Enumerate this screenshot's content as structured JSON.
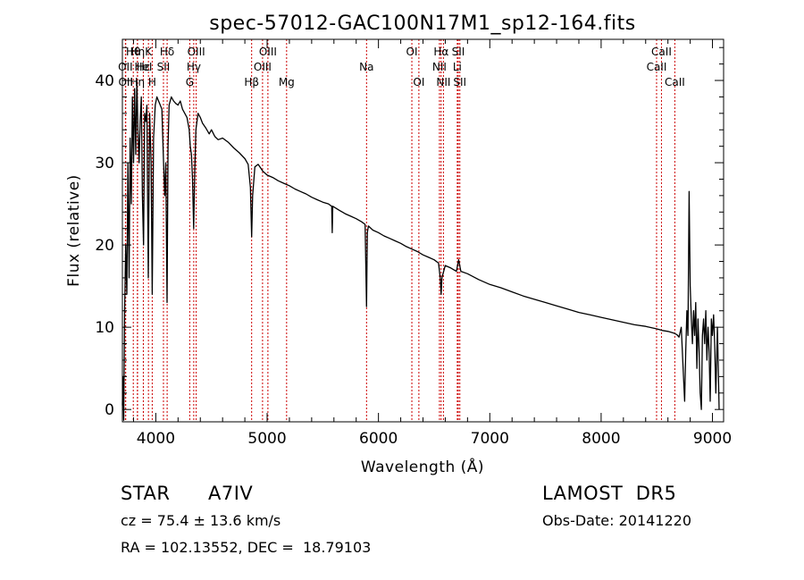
{
  "chart_data": {
    "type": "line",
    "title": "spec-57012-GAC100N17M1_sp12-164.fits",
    "xlabel": "Wavelength (Å)",
    "ylabel": "Flux (relative)",
    "xlim": [
      3700,
      9100
    ],
    "ylim": [
      -1.5,
      45
    ],
    "xticks": [
      4000,
      5000,
      6000,
      7000,
      8000,
      9000
    ],
    "yticks": [
      0,
      10,
      20,
      30,
      40
    ],
    "grid": false,
    "series": [
      {
        "points": [
          [
            3700,
            0.5
          ],
          [
            3705,
            4
          ],
          [
            3712,
            -1.3
          ],
          [
            3720,
            12
          ],
          [
            3730,
            20
          ],
          [
            3740,
            14
          ],
          [
            3750,
            30
          ],
          [
            3760,
            16
          ],
          [
            3770,
            33
          ],
          [
            3780,
            25
          ],
          [
            3790,
            38
          ],
          [
            3800,
            30
          ],
          [
            3810,
            39
          ],
          [
            3820,
            31
          ],
          [
            3830,
            40
          ],
          [
            3840,
            34
          ],
          [
            3850,
            30
          ],
          [
            3860,
            35
          ],
          [
            3870,
            38
          ],
          [
            3880,
            26
          ],
          [
            3890,
            20
          ],
          [
            3900,
            36
          ],
          [
            3910,
            35
          ],
          [
            3920,
            37
          ],
          [
            3933,
            16
          ],
          [
            3945,
            36
          ],
          [
            3958,
            30
          ],
          [
            3968,
            14
          ],
          [
            3980,
            33
          ],
          [
            3995,
            37
          ],
          [
            4010,
            38
          ],
          [
            4025,
            37.5
          ],
          [
            4040,
            37
          ],
          [
            4055,
            36.5
          ],
          [
            4070,
            30
          ],
          [
            4080,
            26
          ],
          [
            4090,
            30
          ],
          [
            4101,
            13
          ],
          [
            4110,
            32
          ],
          [
            4120,
            37
          ],
          [
            4140,
            38
          ],
          [
            4160,
            37.5
          ],
          [
            4180,
            37.2
          ],
          [
            4200,
            37
          ],
          [
            4220,
            37.5
          ],
          [
            4240,
            36.5
          ],
          [
            4260,
            36
          ],
          [
            4280,
            35.5
          ],
          [
            4300,
            34
          ],
          [
            4310,
            32
          ],
          [
            4320,
            31
          ],
          [
            4330,
            28
          ],
          [
            4340,
            22
          ],
          [
            4350,
            29
          ],
          [
            4360,
            34
          ],
          [
            4380,
            36
          ],
          [
            4400,
            35.5
          ],
          [
            4420,
            34.8
          ],
          [
            4450,
            34.2
          ],
          [
            4480,
            33.5
          ],
          [
            4500,
            34
          ],
          [
            4530,
            33.2
          ],
          [
            4560,
            32.8
          ],
          [
            4600,
            33
          ],
          [
            4650,
            32.5
          ],
          [
            4700,
            31.8
          ],
          [
            4750,
            31.2
          ],
          [
            4800,
            30.5
          ],
          [
            4830,
            29.8
          ],
          [
            4850,
            27
          ],
          [
            4861,
            21
          ],
          [
            4870,
            26
          ],
          [
            4890,
            29.5
          ],
          [
            4920,
            29.8
          ],
          [
            4960,
            29
          ],
          [
            5000,
            28.5
          ],
          [
            5050,
            28.2
          ],
          [
            5100,
            27.8
          ],
          [
            5150,
            27.5
          ],
          [
            5200,
            27.2
          ],
          [
            5250,
            26.8
          ],
          [
            5300,
            26.5
          ],
          [
            5350,
            26.2
          ],
          [
            5400,
            25.8
          ],
          [
            5450,
            25.5
          ],
          [
            5500,
            25.2
          ],
          [
            5550,
            25
          ],
          [
            5580,
            24.7
          ],
          [
            5585,
            21.5
          ],
          [
            5590,
            24.7
          ],
          [
            5650,
            24.2
          ],
          [
            5700,
            23.8
          ],
          [
            5750,
            23.5
          ],
          [
            5800,
            23.2
          ],
          [
            5850,
            22.8
          ],
          [
            5880,
            22.5
          ],
          [
            5893,
            12.5
          ],
          [
            5900,
            21.5
          ],
          [
            5910,
            22.3
          ],
          [
            5950,
            21.8
          ],
          [
            6000,
            21.5
          ],
          [
            6050,
            21.1
          ],
          [
            6100,
            20.8
          ],
          [
            6150,
            20.5
          ],
          [
            6200,
            20.2
          ],
          [
            6250,
            19.8
          ],
          [
            6300,
            19.5
          ],
          [
            6350,
            19.2
          ],
          [
            6400,
            18.8
          ],
          [
            6450,
            18.5
          ],
          [
            6500,
            18.2
          ],
          [
            6540,
            17.8
          ],
          [
            6555,
            16
          ],
          [
            6563,
            14
          ],
          [
            6570,
            16
          ],
          [
            6600,
            17.5
          ],
          [
            6650,
            17.2
          ],
          [
            6700,
            16.8
          ],
          [
            6720,
            18.2
          ],
          [
            6740,
            16.8
          ],
          [
            6800,
            16.5
          ],
          [
            6900,
            15.8
          ],
          [
            7000,
            15.2
          ],
          [
            7100,
            14.8
          ],
          [
            7200,
            14.3
          ],
          [
            7300,
            13.8
          ],
          [
            7400,
            13.4
          ],
          [
            7500,
            13
          ],
          [
            7600,
            12.6
          ],
          [
            7700,
            12.2
          ],
          [
            7800,
            11.8
          ],
          [
            7900,
            11.5
          ],
          [
            8000,
            11.2
          ],
          [
            8100,
            10.9
          ],
          [
            8200,
            10.6
          ],
          [
            8300,
            10.3
          ],
          [
            8400,
            10.1
          ],
          [
            8500,
            9.8
          ],
          [
            8550,
            9.6
          ],
          [
            8600,
            9.5
          ],
          [
            8650,
            9.3
          ],
          [
            8680,
            9.1
          ],
          [
            8700,
            8.8
          ],
          [
            8720,
            10
          ],
          [
            8740,
            4
          ],
          [
            8750,
            1
          ],
          [
            8760,
            7
          ],
          [
            8770,
            12
          ],
          [
            8780,
            9
          ],
          [
            8790,
            26.5
          ],
          [
            8800,
            15
          ],
          [
            8810,
            11
          ],
          [
            8820,
            8
          ],
          [
            8830,
            12
          ],
          [
            8840,
            9
          ],
          [
            8850,
            13
          ],
          [
            8860,
            5
          ],
          [
            8870,
            11
          ],
          [
            8880,
            7
          ],
          [
            8890,
            2
          ],
          [
            8900,
            0
          ],
          [
            8910,
            9
          ],
          [
            8920,
            11
          ],
          [
            8930,
            8
          ],
          [
            8940,
            12
          ],
          [
            8950,
            6
          ],
          [
            8960,
            10
          ],
          [
            8970,
            7
          ],
          [
            8980,
            1
          ],
          [
            8990,
            11
          ],
          [
            9000,
            9
          ],
          [
            9010,
            11.5
          ],
          [
            9020,
            8
          ],
          [
            9030,
            2
          ],
          [
            9045,
            10
          ],
          [
            9060,
            0
          ]
        ]
      }
    ],
    "annotations": [
      {
        "label": "Hθ",
        "x": 3798,
        "row": 0
      },
      {
        "label": "OII",
        "x": 3727,
        "row": 1
      },
      {
        "label": "OII",
        "x": 3730,
        "row": 2
      },
      {
        "label": "Hη",
        "x": 3836,
        "row": 0
      },
      {
        "label": "Hε",
        "x": 3889,
        "row": 1
      },
      {
        "label": "Hη",
        "x": 3835,
        "row": 2
      },
      {
        "label": "K",
        "x": 3934,
        "row": 0
      },
      {
        "label": "HeI",
        "x": 3888,
        "row": 1
      },
      {
        "label": "H",
        "x": 3968,
        "row": 2
      },
      {
        "label": "Hδ",
        "x": 4102,
        "row": 0
      },
      {
        "label": "SII",
        "x": 4069,
        "row": 1
      },
      {
        "label": "OIII",
        "x": 4363,
        "row": 0
      },
      {
        "label": "Hγ",
        "x": 4341,
        "row": 1
      },
      {
        "label": "G",
        "x": 4305,
        "row": 2
      },
      {
        "label": "OIII",
        "x": 5007,
        "row": 0
      },
      {
        "label": "OIII",
        "x": 4959,
        "row": 1
      },
      {
        "label": "Hβ",
        "x": 4861,
        "row": 2
      },
      {
        "label": "Mg",
        "x": 5175,
        "row": 2
      },
      {
        "label": "Na",
        "x": 5893,
        "row": 1
      },
      {
        "label": "OI",
        "x": 6300,
        "row": 0
      },
      {
        "label": "OI",
        "x": 6363,
        "row": 2
      },
      {
        "label": "Hα",
        "x": 6563,
        "row": 0
      },
      {
        "label": "NII",
        "x": 6548,
        "row": 1
      },
      {
        "label": "NII",
        "x": 6584,
        "row": 2
      },
      {
        "label": "SII",
        "x": 6717,
        "row": 0
      },
      {
        "label": "Li",
        "x": 6708,
        "row": 1
      },
      {
        "label": "SII",
        "x": 6731,
        "row": 2
      },
      {
        "label": "CaII",
        "x": 8542,
        "row": 0
      },
      {
        "label": "CaII",
        "x": 8498,
        "row": 1
      },
      {
        "label": "CaII",
        "x": 8662,
        "row": 2
      }
    ],
    "line_color": "#000000",
    "marker_color": "#cc0000"
  },
  "info": {
    "object_class": "STAR",
    "subclass": "A7IV",
    "survey": "LAMOST  DR5",
    "cz": "cz = 75.4 ± 13.6 km/s",
    "obs_date": "Obs-Date: 20141220",
    "coords": "RA = 102.13552, DEC =  18.79103"
  }
}
